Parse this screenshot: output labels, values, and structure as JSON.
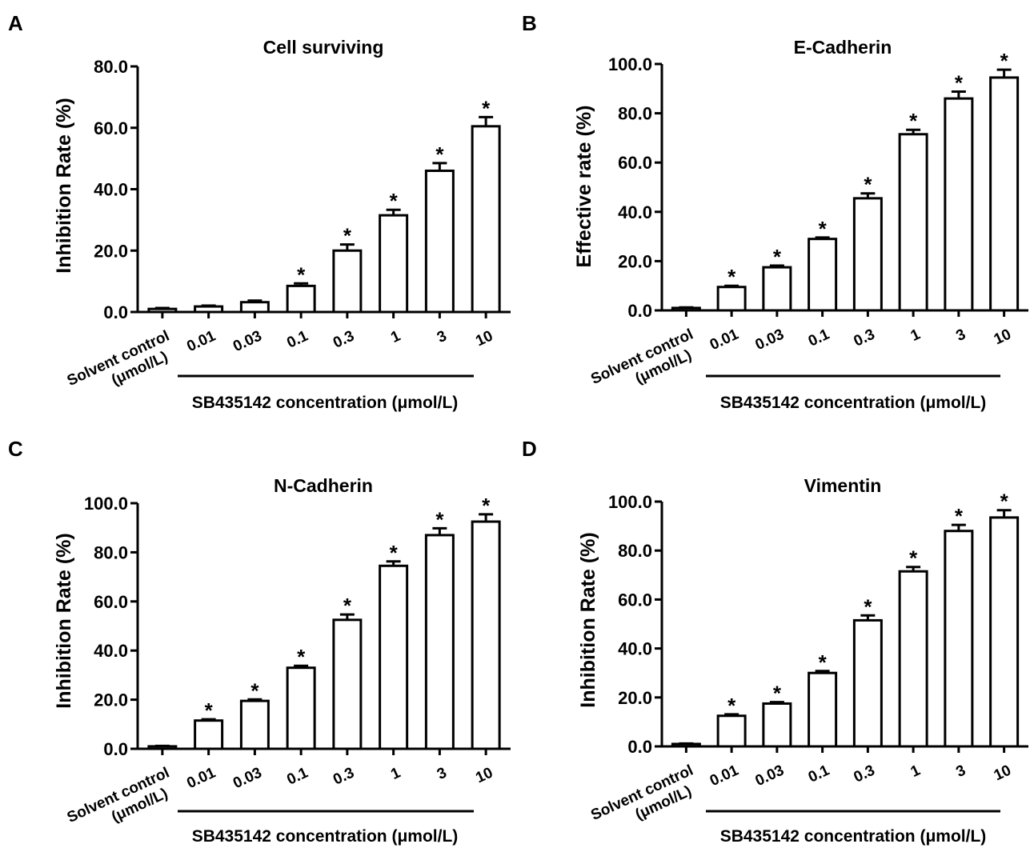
{
  "categories": [
    "Solvent control",
    "0.01",
    "0.03",
    "0.1",
    "0.3",
    "1",
    "3",
    "10"
  ],
  "first_category_unit": "(μmol/L)",
  "x_group_label": "SB435142 concentration  (μmol/L)",
  "chart_data": [
    {
      "panel": "A",
      "type": "bar",
      "title": "Cell surviving",
      "ylabel": "Inhibition Rate (%)",
      "xlabel": "SB435142 concentration  (μmol/L)",
      "categories": [
        "Solvent control",
        "0.01",
        "0.03",
        "0.1",
        "0.3",
        "1",
        "3",
        "10"
      ],
      "values": [
        1.0,
        1.8,
        3.2,
        8.5,
        20.0,
        31.5,
        46.0,
        60.5
      ],
      "errors": [
        0.3,
        0.3,
        0.5,
        0.8,
        2.0,
        1.8,
        2.5,
        3.0
      ],
      "significant": [
        false,
        false,
        false,
        true,
        true,
        true,
        true,
        true
      ],
      "ylim": [
        0,
        80
      ],
      "yticks": [
        "0.0",
        "20.0",
        "40.0",
        "60.0",
        "80.0"
      ]
    },
    {
      "panel": "B",
      "type": "bar",
      "title": "E-Cadherin",
      "ylabel": "Effective rate (%)",
      "xlabel": "SB435142 concentration  (μmol/L)",
      "categories": [
        "Solvent control",
        "0.01",
        "0.03",
        "0.1",
        "0.3",
        "1",
        "3",
        "10"
      ],
      "values": [
        1.0,
        9.5,
        17.5,
        29.0,
        45.5,
        71.5,
        86.0,
        94.5
      ],
      "errors": [
        0.2,
        0.5,
        0.7,
        0.6,
        2.0,
        1.8,
        2.8,
        3.2
      ],
      "significant": [
        false,
        true,
        true,
        true,
        true,
        true,
        true,
        true
      ],
      "ylim": [
        0,
        100
      ],
      "yticks": [
        "0.0",
        "20.0",
        "40.0",
        "60.0",
        "80.0",
        "100.0"
      ]
    },
    {
      "panel": "C",
      "type": "bar",
      "title": "N-Cadherin",
      "ylabel": "Inhibition Rate (%)",
      "xlabel": "SB435142 concentration  (μmol/L)",
      "categories": [
        "Solvent control",
        "0.01",
        "0.03",
        "0.1",
        "0.3",
        "1",
        "3",
        "10"
      ],
      "values": [
        1.0,
        11.5,
        19.5,
        33.0,
        52.5,
        74.5,
        87.0,
        92.5
      ],
      "errors": [
        0.2,
        0.5,
        0.6,
        0.8,
        2.2,
        1.8,
        2.8,
        3.0
      ],
      "significant": [
        false,
        true,
        true,
        true,
        true,
        true,
        true,
        true
      ],
      "ylim": [
        0,
        100
      ],
      "yticks": [
        "0.0",
        "20.0",
        "40.0",
        "60.0",
        "80.0",
        "100.0"
      ]
    },
    {
      "panel": "D",
      "type": "bar",
      "title": "Vimentin",
      "ylabel": "Inhibition Rate (%)",
      "xlabel": "SB435142 concentration  (μmol/L)",
      "categories": [
        "Solvent control",
        "0.01",
        "0.03",
        "0.1",
        "0.3",
        "1",
        "3",
        "10"
      ],
      "values": [
        1.0,
        12.5,
        17.5,
        30.0,
        51.5,
        71.5,
        88.0,
        93.5
      ],
      "errors": [
        0.2,
        0.6,
        0.6,
        0.8,
        2.0,
        1.8,
        2.5,
        3.0
      ],
      "significant": [
        false,
        true,
        true,
        true,
        true,
        true,
        true,
        true
      ],
      "ylim": [
        0,
        100
      ],
      "yticks": [
        "0.0",
        "20.0",
        "40.0",
        "60.0",
        "80.0",
        "100.0"
      ]
    }
  ],
  "significance_marker": "*"
}
